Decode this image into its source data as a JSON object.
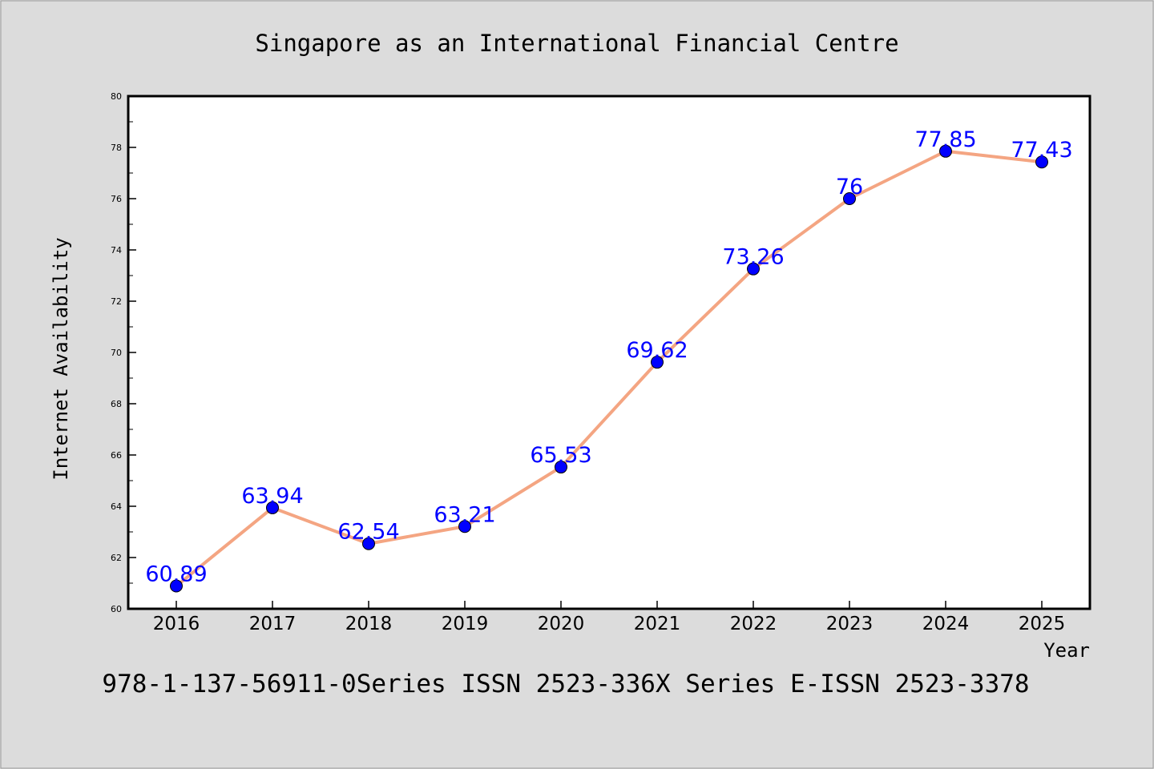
{
  "chart_data": {
    "type": "line",
    "title": "Singapore as an International Financial Centre",
    "xlabel": "Year",
    "ylabel": "Internet Availability",
    "footer": "978-1-137-56911-0Series ISSN 2523-336X Series E-ISSN 2523-3378",
    "categories": [
      "2016",
      "2017",
      "2018",
      "2019",
      "2020",
      "2021",
      "2022",
      "2023",
      "2024",
      "2025"
    ],
    "values": [
      60.89,
      63.94,
      62.54,
      63.21,
      65.53,
      69.62,
      73.26,
      76,
      77.85,
      77.43
    ],
    "data_labels": [
      "60.89",
      "63.94",
      "62.54",
      "63.21",
      "65.53",
      "69.62",
      "73.26",
      "76",
      "77.85",
      "77.43"
    ],
    "yticks": [
      "60",
      "62",
      "64",
      "66",
      "68",
      "70",
      "72",
      "74",
      "76",
      "78",
      "80"
    ],
    "ylim": [
      60,
      80
    ],
    "grid": false,
    "legend": "none",
    "colors": {
      "background": "#dcdcdc",
      "plot_background": "#ffffff",
      "line": "#f4a582",
      "marker": "#0000ff",
      "data_label": "#0000ff",
      "axis": "#000000"
    }
  }
}
